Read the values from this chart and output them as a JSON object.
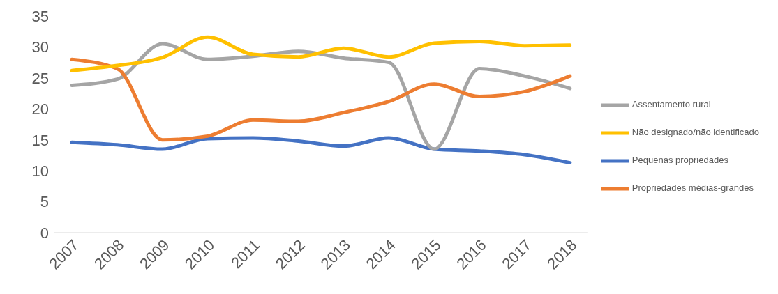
{
  "chart_data": {
    "type": "line",
    "categories": [
      "2007",
      "2008",
      "2009",
      "2010",
      "2011",
      "2012",
      "2013",
      "2014",
      "2015",
      "2016",
      "2017",
      "2018"
    ],
    "series": [
      {
        "name": "Pequenas propriedades",
        "color": "#4472c4",
        "values": [
          14.6,
          14.2,
          13.5,
          15.2,
          15.3,
          14.8,
          14.0,
          15.3,
          13.5,
          13.2,
          12.6,
          11.3
        ]
      },
      {
        "name": "Assentamento rural",
        "color": "#a5a5a5",
        "values": [
          23.8,
          24.8,
          30.5,
          28.0,
          28.5,
          29.3,
          28.2,
          27.5,
          13.5,
          26.5,
          25.3,
          23.3
        ]
      },
      {
        "name": "Propriedades médias-grandes",
        "color": "#ed7d31",
        "values": [
          28.0,
          26.5,
          15.0,
          15.6,
          18.2,
          18.0,
          19.4,
          21.2,
          24.0,
          22.0,
          22.8,
          25.3
        ]
      },
      {
        "name": "Não designado/não identificado",
        "color": "#ffc000",
        "values": [
          26.2,
          27.0,
          28.3,
          31.6,
          28.8,
          28.4,
          29.8,
          28.4,
          30.6,
          30.9,
          30.2,
          30.3
        ]
      }
    ],
    "ylim": [
      0,
      35
    ],
    "yticks": [
      0,
      5,
      10,
      15,
      20,
      25,
      30,
      35
    ],
    "grid": false,
    "legend": "right",
    "marker": "none",
    "line_style": "solid"
  }
}
